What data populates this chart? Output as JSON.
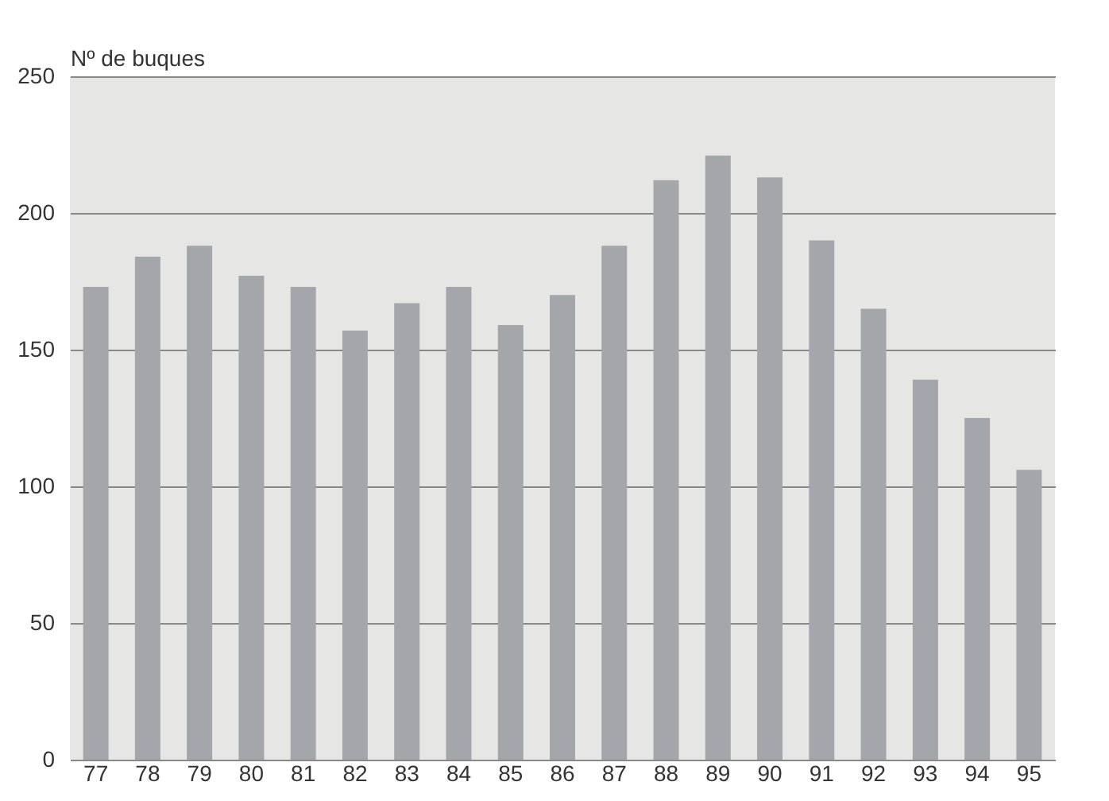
{
  "chart_data": {
    "type": "bar",
    "ylabel": "Nº de buques",
    "categories": [
      "77",
      "78",
      "79",
      "80",
      "81",
      "82",
      "83",
      "84",
      "85",
      "86",
      "87",
      "88",
      "89",
      "90",
      "91",
      "92",
      "93",
      "94",
      "95"
    ],
    "values": [
      173,
      184,
      188,
      177,
      173,
      157,
      167,
      173,
      159,
      170,
      188,
      212,
      221,
      213,
      190,
      165,
      139,
      125,
      106
    ],
    "color": "#a3a7ab",
    "ylim": [
      0,
      250
    ],
    "yticks": [
      0,
      50,
      100,
      150,
      200,
      250
    ],
    "grid": "y"
  }
}
